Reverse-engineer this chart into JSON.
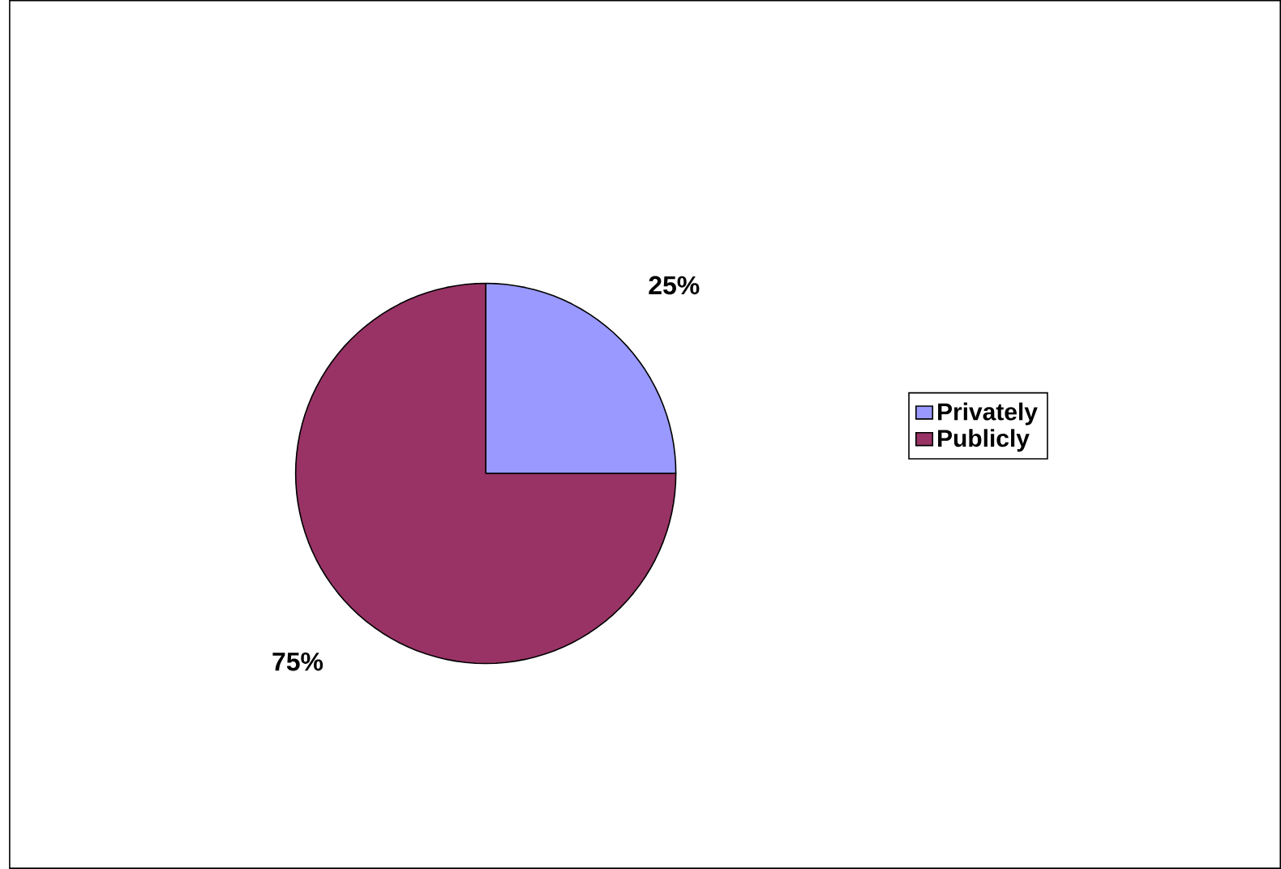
{
  "chart_data": {
    "type": "pie",
    "categories": [
      "Privately",
      "Publicly"
    ],
    "values": [
      25,
      75
    ],
    "colors": [
      "#9999ff",
      "#993366"
    ],
    "data_labels": true,
    "value_labels": [
      "25%",
      "75%"
    ],
    "legend": "right"
  }
}
